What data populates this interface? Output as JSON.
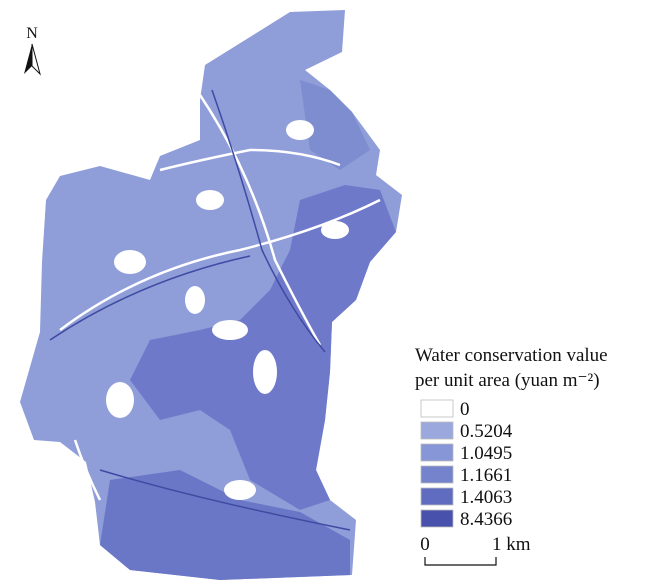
{
  "north_arrow": {
    "label": "N"
  },
  "legend": {
    "title_lines": [
      "Water conservation value",
      "per unit area (yuan m⁻²)"
    ],
    "classes": [
      {
        "label": "0",
        "color": "#ffffff"
      },
      {
        "label": "0.5204",
        "color": "#9aa8de"
      },
      {
        "label": "1.0495",
        "color": "#8796d6"
      },
      {
        "label": "1.1661",
        "color": "#7583cc"
      },
      {
        "label": "1.4063",
        "color": "#5f6cc0"
      },
      {
        "label": "8.4366",
        "color": "#4852ac"
      }
    ]
  },
  "scale_bar": {
    "start_label": "0",
    "end_label": "1 km"
  }
}
